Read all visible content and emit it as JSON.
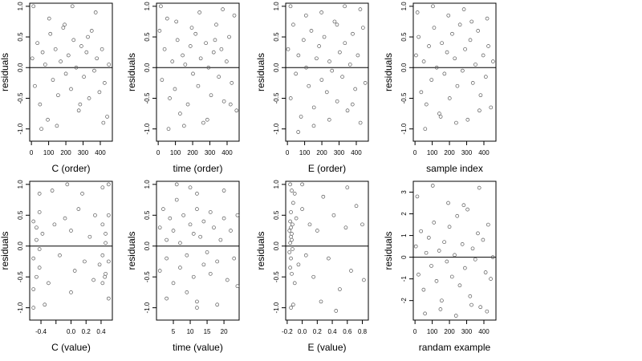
{
  "figure": {
    "panels_note": "",
    "zero_line_color": "#000000",
    "point_color": "#595959"
  },
  "chart_data": [
    {
      "type": "scatter",
      "xlabel": "C (order)",
      "ylabel": "residuals",
      "xlim": [
        -10,
        470
      ],
      "ylim": [
        -1.2,
        1.05
      ],
      "xticks": [
        0,
        100,
        200,
        300,
        400
      ],
      "xtick_labels": [
        "0",
        "100",
        "200",
        "300",
        "400"
      ],
      "yticks": [
        -1.0,
        -0.5,
        0.0,
        0.5,
        1.0
      ],
      "ytick_labels": [
        "-1.0",
        "-0.5",
        "0.0",
        "0.5",
        "1.0"
      ],
      "reference_line_y": 0,
      "x": [
        5,
        20,
        35,
        50,
        65,
        80,
        95,
        110,
        125,
        140,
        155,
        170,
        185,
        200,
        215,
        230,
        245,
        260,
        275,
        290,
        305,
        320,
        335,
        350,
        365,
        380,
        395,
        410,
        425,
        440,
        450,
        12,
        58,
        103,
        148,
        193,
        238,
        283,
        328,
        373,
        418
      ],
      "y": [
        0.15,
        -0.3,
        0.4,
        -0.6,
        0.25,
        0.05,
        -0.85,
        0.55,
        -0.2,
        0.3,
        -0.45,
        0.1,
        0.65,
        -0.1,
        0.2,
        -0.35,
        0.45,
        0.0,
        -0.7,
        0.35,
        -0.15,
        0.25,
        -0.5,
        0.6,
        -0.05,
        0.15,
        -0.4,
        0.3,
        -0.25,
        -0.8,
        0.05,
        1.0,
        -1.0,
        0.8,
        -0.95,
        0.7,
        1.0,
        -0.6,
        0.5,
        0.9,
        -0.9
      ]
    },
    {
      "type": "scatter",
      "xlabel": "time (order)",
      "ylabel": "residuals",
      "xlim": [
        -10,
        470
      ],
      "ylim": [
        -1.2,
        1.05
      ],
      "xticks": [
        0,
        100,
        200,
        300,
        400
      ],
      "xtick_labels": [
        "0",
        "100",
        "200",
        "300",
        "400"
      ],
      "yticks": [
        -1.0,
        -0.5,
        0.0,
        0.5,
        1.0
      ],
      "ytick_labels": [
        "-1.0",
        "-0.5",
        "0.0",
        "0.5",
        "1.0"
      ],
      "reference_line_y": 0,
      "x": [
        8,
        22,
        37,
        52,
        67,
        82,
        97,
        112,
        127,
        142,
        157,
        172,
        187,
        202,
        217,
        232,
        247,
        262,
        277,
        292,
        307,
        322,
        337,
        352,
        367,
        382,
        397,
        412,
        427,
        442,
        455,
        15,
        60,
        105,
        150,
        195,
        240,
        285,
        330,
        375,
        420
      ],
      "y": [
        0.6,
        -0.2,
        0.3,
        0.8,
        -0.5,
        0.1,
        -0.35,
        0.45,
        -0.75,
        0.2,
        0.05,
        -0.6,
        0.35,
        -0.1,
        0.55,
        -0.3,
        0.15,
        -0.9,
        0.4,
        0.0,
        -0.45,
        0.25,
        0.7,
        -0.15,
        0.3,
        -0.55,
        0.1,
        0.5,
        -0.25,
        0.85,
        -0.7,
        1.0,
        -1.0,
        0.75,
        -0.95,
        0.65,
        0.9,
        -0.85,
        0.45,
        0.95,
        -0.6
      ]
    },
    {
      "type": "scatter",
      "xlabel": "E (order)",
      "ylabel": "residuals",
      "xlim": [
        -10,
        470
      ],
      "ylim": [
        -1.2,
        1.05
      ],
      "xticks": [
        0,
        100,
        200,
        300,
        400
      ],
      "xtick_labels": [
        "0",
        "100",
        "200",
        "300",
        "400"
      ],
      "yticks": [
        -1.0,
        -0.5,
        0.0,
        0.5,
        1.0
      ],
      "ytick_labels": [
        "-1.0",
        "-0.5",
        "0.0",
        "0.5",
        "1.0"
      ],
      "reference_line_y": 0,
      "x": [
        4,
        19,
        34,
        49,
        64,
        79,
        94,
        109,
        124,
        139,
        154,
        169,
        184,
        199,
        214,
        229,
        244,
        259,
        274,
        289,
        304,
        319,
        334,
        349,
        364,
        379,
        394,
        409,
        424,
        439,
        452,
        18,
        63,
        108,
        153,
        198,
        243,
        288,
        333,
        378,
        423
      ],
      "y": [
        0.3,
        -0.5,
        0.7,
        -0.1,
        0.2,
        -0.8,
        0.45,
        0.0,
        -0.3,
        0.6,
        -0.65,
        0.15,
        0.35,
        -0.2,
        0.5,
        -0.4,
        0.1,
        -0.05,
        0.75,
        -0.55,
        0.25,
        -0.15,
        0.4,
        -0.7,
        0.05,
        0.55,
        -0.35,
        0.2,
        -0.9,
        0.65,
        -0.25,
        1.0,
        -1.05,
        0.85,
        -0.95,
        0.9,
        -0.85,
        0.7,
        1.0,
        -0.6,
        0.95
      ]
    },
    {
      "type": "scatter",
      "xlabel": "sample index",
      "ylabel": "residuals",
      "xlim": [
        -10,
        470
      ],
      "ylim": [
        -1.2,
        1.05
      ],
      "xticks": [
        0,
        100,
        200,
        300,
        400
      ],
      "xtick_labels": [
        "0",
        "100",
        "200",
        "300",
        "400"
      ],
      "yticks": [
        -1.0,
        -0.5,
        0.0,
        0.5,
        1.0
      ],
      "ytick_labels": [
        "-1.0",
        "-0.5",
        "0.0",
        "0.5",
        "1.0"
      ],
      "reference_line_y": 0,
      "x": [
        6,
        21,
        36,
        51,
        66,
        81,
        96,
        111,
        126,
        141,
        156,
        171,
        186,
        201,
        216,
        231,
        246,
        261,
        276,
        291,
        306,
        321,
        336,
        351,
        366,
        381,
        396,
        411,
        426,
        441,
        453,
        14,
        59,
        104,
        149,
        194,
        239,
        284,
        329,
        374,
        419
      ],
      "y": [
        0.2,
        0.5,
        -0.4,
        0.1,
        -0.6,
        0.35,
        -0.2,
        0.65,
        0.0,
        -0.75,
        0.4,
        -0.1,
        0.25,
        -0.5,
        0.55,
        0.15,
        -0.3,
        0.7,
        -0.05,
        0.3,
        -0.85,
        0.45,
        -0.25,
        0.05,
        0.6,
        -0.45,
        0.2,
        -0.15,
        0.35,
        -0.65,
        0.1,
        0.9,
        -1.0,
        1.0,
        -0.8,
        0.85,
        -0.9,
        0.95,
        0.75,
        -0.7,
        0.8
      ]
    },
    {
      "type": "scatter",
      "xlabel": "C (value)",
      "ylabel": "residuals",
      "xlim": [
        -0.55,
        0.55
      ],
      "ylim": [
        -1.2,
        1.05
      ],
      "xticks": [
        -0.4,
        0.0,
        0.2,
        0.4
      ],
      "xtick_labels": [
        "-0.4",
        "0.0",
        "0.2",
        "0.4"
      ],
      "minor_xticks": [
        -0.2
      ],
      "yticks": [
        -1.0,
        -0.5,
        0.0,
        0.5,
        1.0
      ],
      "ytick_labels": [
        "-1.0",
        "-0.5",
        "0.0",
        "0.5",
        "1.0"
      ],
      "reference_line_y": 0,
      "x": [
        -0.5,
        -0.5,
        -0.5,
        -0.46,
        -0.46,
        -0.46,
        -0.42,
        -0.42,
        -0.42,
        -0.38,
        -0.3,
        -0.22,
        -0.15,
        -0.08,
        0.0,
        0.05,
        0.1,
        0.18,
        0.25,
        0.32,
        0.38,
        0.42,
        0.42,
        0.42,
        0.46,
        0.46,
        0.46,
        0.5,
        0.5,
        0.5,
        -0.5,
        -0.42,
        0.0,
        0.42,
        0.5,
        -0.35,
        -0.05,
        0.15,
        0.3,
        -0.25,
        0.45
      ],
      "y": [
        0.4,
        -0.2,
        -0.7,
        0.3,
        -0.5,
        0.1,
        0.55,
        -0.35,
        -0.05,
        0.2,
        -0.6,
        0.35,
        -0.15,
        0.45,
        0.25,
        -0.4,
        0.6,
        -0.25,
        0.15,
        0.5,
        -0.3,
        0.35,
        -0.15,
        -0.6,
        0.2,
        -0.45,
        0.05,
        0.5,
        -0.25,
        -0.85,
        -1.0,
        0.85,
        -0.75,
        0.95,
        1.0,
        -0.95,
        1.0,
        0.85,
        -0.55,
        0.9,
        -0.5
      ]
    },
    {
      "type": "scatter",
      "xlabel": "time (value)",
      "ylabel": "residuals",
      "xlim": [
        0,
        24.5
      ],
      "ylim": [
        -1.2,
        1.05
      ],
      "xticks": [
        5,
        10,
        15,
        20
      ],
      "xtick_labels": [
        "5",
        "10",
        "15",
        "20"
      ],
      "yticks": [
        -1.0,
        -0.5,
        0.0,
        0.5,
        1.0
      ],
      "ytick_labels": [
        "-1.0",
        "-0.5",
        "0.0",
        "0.5",
        "1.0"
      ],
      "reference_line_y": 0,
      "x": [
        1,
        1,
        2,
        3,
        3,
        4,
        5,
        5,
        6,
        7,
        7,
        8,
        9,
        9,
        10,
        11,
        11,
        12,
        12,
        13,
        14,
        14,
        15,
        16,
        16,
        17,
        18,
        19,
        20,
        21,
        22,
        23,
        24,
        24,
        12,
        12,
        6,
        18,
        10,
        20,
        3
      ],
      "y": [
        0.3,
        -0.4,
        0.6,
        -0.2,
        0.1,
        0.45,
        -0.6,
        0.25,
        0.75,
        -0.35,
        0.05,
        0.5,
        -0.15,
        -0.75,
        0.35,
        -0.5,
        0.2,
        -0.9,
        0.6,
        0.15,
        -0.3,
        0.4,
        -0.1,
        0.55,
        -0.45,
        0.3,
        -0.25,
        0.1,
        0.45,
        -0.55,
        0.25,
        -0.2,
        0.5,
        -0.65,
        0.85,
        -1.0,
        1.0,
        -0.95,
        0.95,
        0.9,
        -0.85
      ]
    },
    {
      "type": "scatter",
      "xlabel": "E (value)",
      "ylabel": "residuals",
      "xlim": [
        -0.22,
        0.88
      ],
      "ylim": [
        -1.2,
        1.05
      ],
      "xticks": [
        -0.2,
        0.0,
        0.2,
        0.4,
        0.6,
        0.8
      ],
      "xtick_labels": [
        "-0.2",
        "0.0",
        "0.2",
        "0.4",
        "0.6",
        "0.8"
      ],
      "yticks": [
        -1.0,
        -0.5,
        0.0,
        0.5,
        1.0
      ],
      "ytick_labels": [
        "-1.0",
        "-0.5",
        "0.0",
        "0.5",
        "1.0"
      ],
      "reference_line_y": 0,
      "x": [
        -0.17,
        -0.17,
        -0.16,
        -0.16,
        -0.16,
        -0.15,
        -0.15,
        -0.15,
        -0.15,
        -0.14,
        -0.14,
        -0.14,
        -0.13,
        -0.13,
        -0.12,
        -0.1,
        -0.08,
        -0.05,
        0.0,
        0.05,
        0.1,
        0.15,
        0.2,
        0.28,
        0.35,
        0.42,
        0.5,
        0.58,
        0.65,
        0.72,
        0.8,
        -0.16,
        -0.15,
        -0.14,
        -0.12,
        0.0,
        0.6,
        0.82,
        0.25,
        -0.1,
        0.45
      ],
      "y": [
        0.25,
        -0.1,
        0.4,
        0.05,
        -0.35,
        0.3,
        0.15,
        -0.2,
        0.55,
        0.1,
        -0.45,
        0.2,
        -0.05,
        0.35,
        0.7,
        -0.6,
        0.45,
        -0.3,
        0.6,
        -0.15,
        0.35,
        -0.5,
        0.25,
        0.8,
        -0.2,
        0.5,
        -0.7,
        0.3,
        -0.4,
        0.65,
        0.35,
        1.0,
        -1.0,
        0.9,
        -0.95,
        1.0,
        0.95,
        -0.55,
        -0.9,
        0.85,
        -1.05
      ]
    },
    {
      "type": "scatter",
      "xlabel": "randam example",
      "ylabel": "residuals",
      "xlim": [
        -10,
        470
      ],
      "ylim": [
        -2.9,
        3.5
      ],
      "xticks": [
        0,
        100,
        200,
        300,
        400
      ],
      "xtick_labels": [
        "0",
        "100",
        "200",
        "300",
        "400"
      ],
      "yticks": [
        -2,
        -1,
        0,
        1,
        2,
        3
      ],
      "ytick_labels": [
        "-2",
        "-1",
        "0",
        "1",
        "2",
        "3"
      ],
      "reference_line_y": 0,
      "x": [
        5,
        20,
        35,
        50,
        65,
        80,
        95,
        110,
        125,
        140,
        155,
        170,
        185,
        200,
        215,
        230,
        245,
        260,
        275,
        290,
        305,
        320,
        335,
        350,
        365,
        380,
        395,
        410,
        425,
        440,
        452,
        13,
        58,
        103,
        148,
        193,
        238,
        283,
        328,
        373,
        418
      ],
      "y": [
        0.5,
        -0.8,
        1.2,
        -1.5,
        0.2,
        0.9,
        -0.4,
        1.6,
        -1.1,
        0.3,
        -2.0,
        0.7,
        -0.2,
        1.4,
        -0.9,
        0.1,
        1.9,
        -1.3,
        0.6,
        -0.5,
        2.2,
        -1.8,
        0.4,
        -0.1,
        1.1,
        -2.3,
        0.8,
        -0.7,
        1.5,
        -1.0,
        0.0,
        2.8,
        -2.6,
        3.3,
        -2.4,
        2.5,
        -2.7,
        2.4,
        -2.2,
        3.2,
        -2.5
      ]
    }
  ]
}
